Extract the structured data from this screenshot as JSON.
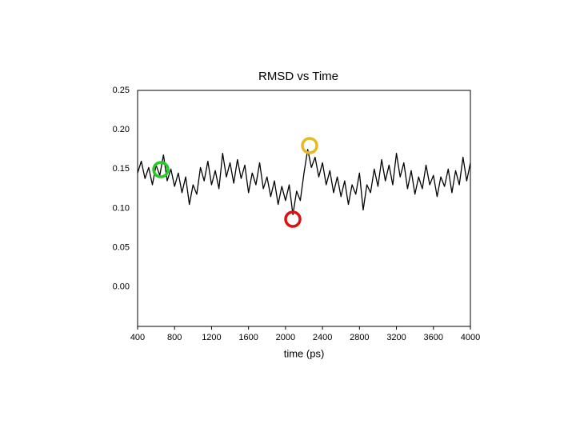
{
  "chart_data": {
    "type": "line",
    "title": "RMSD vs Time",
    "x_label": "time (ps)",
    "x": [
      400,
      440,
      480,
      520,
      560,
      600,
      640,
      680,
      720,
      760,
      800,
      840,
      880,
      920,
      960,
      1000,
      1040,
      1080,
      1120,
      1160,
      1200,
      1240,
      1280,
      1320,
      1360,
      1400,
      1440,
      1480,
      1520,
      1560,
      1600,
      1640,
      1680,
      1720,
      1760,
      1800,
      1840,
      1880,
      1920,
      1960,
      2000,
      2040,
      2080,
      2120,
      2160,
      2200,
      2240,
      2280,
      2320,
      2360,
      2400,
      2440,
      2480,
      2520,
      2560,
      2600,
      2640,
      2680,
      2720,
      2760,
      2800,
      2840,
      2880,
      2920,
      2960,
      3000,
      3040,
      3080,
      3120,
      3160,
      3200,
      3240,
      3280,
      3320,
      3360,
      3400,
      3440,
      3480,
      3520,
      3560,
      3600,
      3640,
      3680,
      3720,
      3760,
      3800,
      3840,
      3880,
      3920,
      3960,
      4000
    ],
    "values": [
      0.145,
      0.16,
      0.138,
      0.152,
      0.13,
      0.155,
      0.142,
      0.168,
      0.135,
      0.15,
      0.128,
      0.145,
      0.12,
      0.14,
      0.105,
      0.13,
      0.118,
      0.152,
      0.135,
      0.16,
      0.13,
      0.148,
      0.125,
      0.17,
      0.14,
      0.158,
      0.132,
      0.162,
      0.138,
      0.155,
      0.12,
      0.145,
      0.13,
      0.158,
      0.125,
      0.14,
      0.115,
      0.135,
      0.105,
      0.128,
      0.11,
      0.13,
      0.092,
      0.122,
      0.11,
      0.145,
      0.175,
      0.152,
      0.165,
      0.14,
      0.158,
      0.13,
      0.148,
      0.12,
      0.14,
      0.115,
      0.135,
      0.105,
      0.13,
      0.118,
      0.145,
      0.098,
      0.13,
      0.12,
      0.15,
      0.128,
      0.162,
      0.135,
      0.155,
      0.13,
      0.17,
      0.14,
      0.158,
      0.125,
      0.148,
      0.118,
      0.14,
      0.125,
      0.155,
      0.13,
      0.142,
      0.115,
      0.14,
      0.128,
      0.15,
      0.12,
      0.148,
      0.13,
      0.165,
      0.135,
      0.158
    ],
    "color": "#000000",
    "xlim": [
      400,
      4000
    ],
    "xticks": [
      400,
      800,
      1200,
      1600,
      2000,
      2400,
      2800,
      3200,
      3600,
      4000
    ],
    "ylim": [
      -0.05,
      0.25
    ],
    "yticks": [
      {
        "value": 0,
        "label": "0.00"
      },
      {
        "value": 0.05,
        "label": "0.05"
      },
      {
        "value": 0.1,
        "label": "0.10"
      },
      {
        "value": 0.15,
        "label": "0.15"
      },
      {
        "value": 0.2,
        "label": "0.20"
      },
      {
        "value": 0.25,
        "label": "0.25"
      }
    ]
  }
}
